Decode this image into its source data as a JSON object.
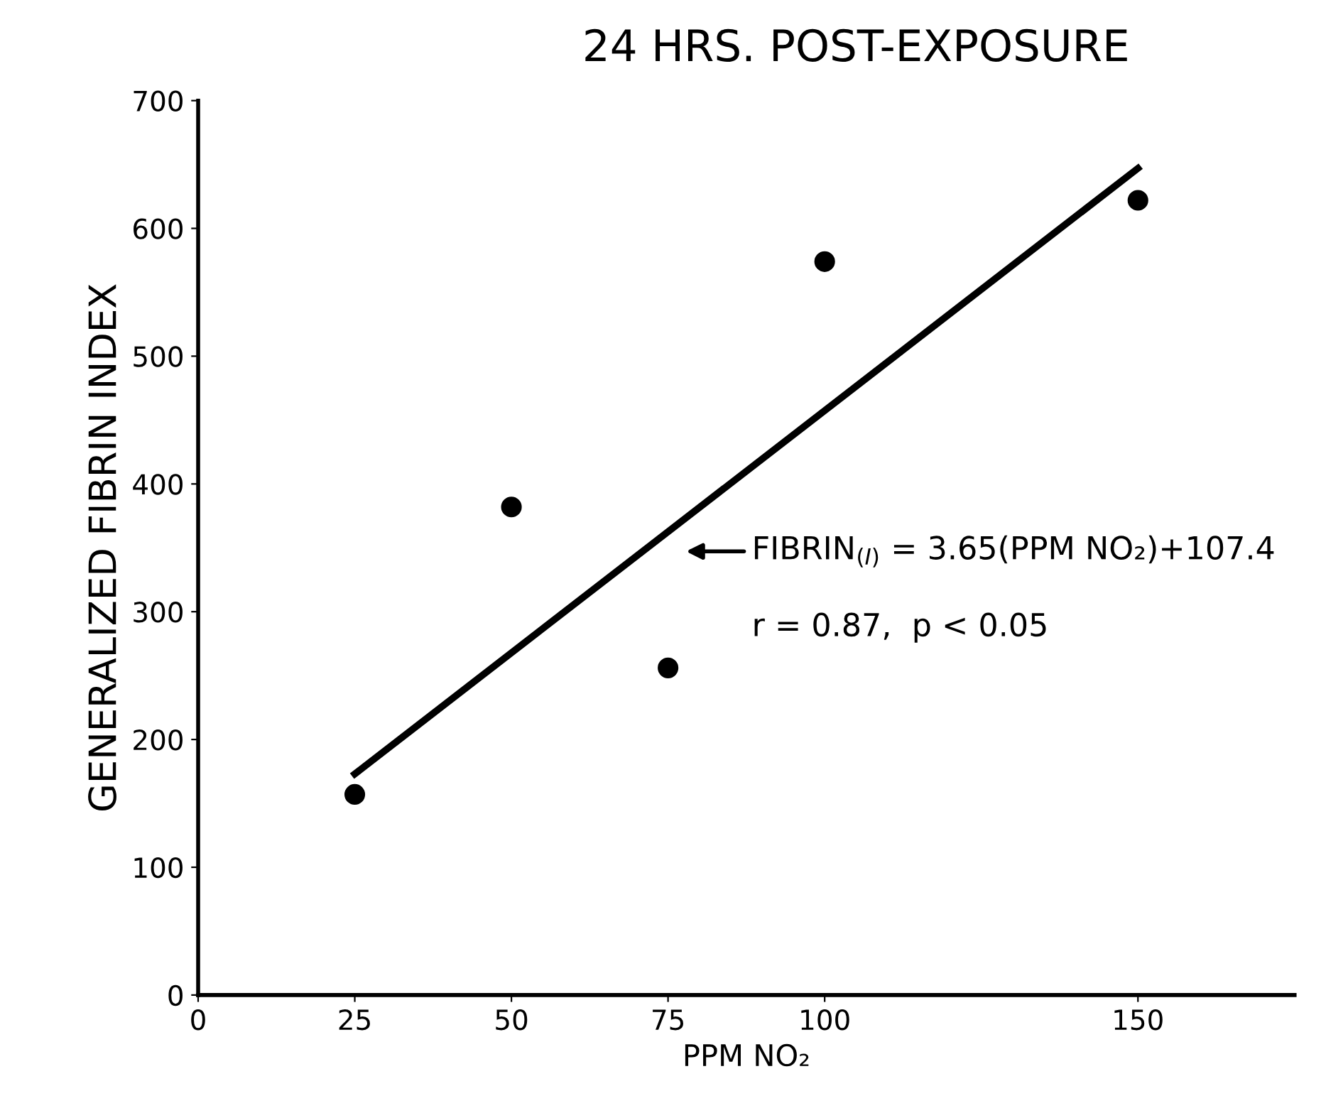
{
  "chart_data": {
    "type": "scatter",
    "title": "24 HRS. POST-EXPOSURE",
    "xlabel": "PPM NO₂",
    "ylabel": "GENERALIZED FIBRIN INDEX",
    "x": [
      25,
      50,
      75,
      100,
      150
    ],
    "series": [
      {
        "color": "#000000",
        "marker": "circle",
        "values": [
          157,
          382,
          256,
          574,
          622
        ]
      },
      {
        "type": "line",
        "color": "#000000",
        "line_style": "solid",
        "x": [
          25,
          150
        ],
        "values": [
          173,
          647
        ]
      }
    ],
    "xlim": [
      0,
      175
    ],
    "xticks": [
      0,
      25,
      50,
      75,
      100,
      150
    ],
    "ylim": [
      0,
      700
    ],
    "yticks": [
      0,
      100,
      200,
      300,
      400,
      500,
      600,
      700
    ],
    "grid": false,
    "legend": false,
    "annotations": [
      "FIBRIN$_{(I)}$ = 3.65(PPM NO₂)+107.4",
      "r = 0.87,  p < 0.05"
    ]
  }
}
